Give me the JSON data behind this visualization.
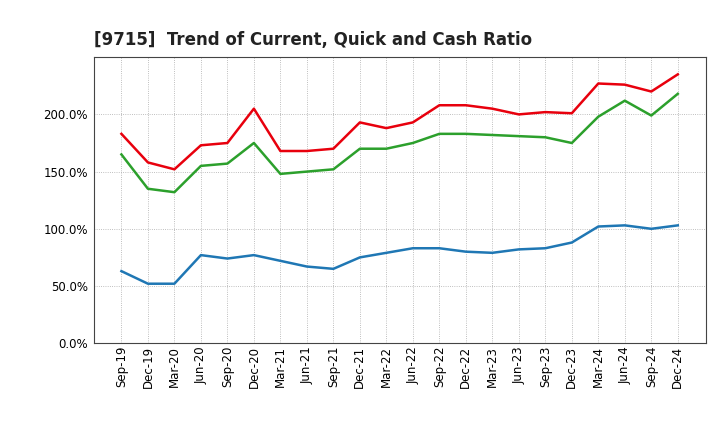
{
  "title": "[9715]  Trend of Current, Quick and Cash Ratio",
  "x_labels": [
    "Sep-19",
    "Dec-19",
    "Mar-20",
    "Jun-20",
    "Sep-20",
    "Dec-20",
    "Mar-21",
    "Jun-21",
    "Sep-21",
    "Dec-21",
    "Mar-22",
    "Jun-22",
    "Sep-22",
    "Dec-22",
    "Mar-23",
    "Jun-23",
    "Sep-23",
    "Dec-23",
    "Mar-24",
    "Jun-24",
    "Sep-24",
    "Dec-24"
  ],
  "current_ratio": [
    183,
    158,
    152,
    173,
    175,
    205,
    168,
    168,
    170,
    193,
    188,
    193,
    208,
    208,
    205,
    200,
    202,
    201,
    227,
    226,
    220,
    235
  ],
  "quick_ratio": [
    165,
    135,
    132,
    155,
    157,
    175,
    148,
    150,
    152,
    170,
    170,
    175,
    183,
    183,
    182,
    181,
    180,
    175,
    198,
    212,
    199,
    218
  ],
  "cash_ratio": [
    63,
    52,
    52,
    77,
    74,
    77,
    72,
    67,
    65,
    75,
    79,
    83,
    83,
    80,
    79,
    82,
    83,
    88,
    102,
    103,
    100,
    103
  ],
  "ylim": [
    0,
    250
  ],
  "yticks": [
    0,
    50,
    100,
    150,
    200
  ],
  "current_color": "#e8000d",
  "quick_color": "#2ca02c",
  "cash_color": "#1f77b4",
  "background_color": "#ffffff",
  "grid_color": "#aaaaaa",
  "plot_bg_color": "#ffffff",
  "title_fontsize": 12,
  "tick_fontsize": 8.5,
  "legend_fontsize": 9
}
